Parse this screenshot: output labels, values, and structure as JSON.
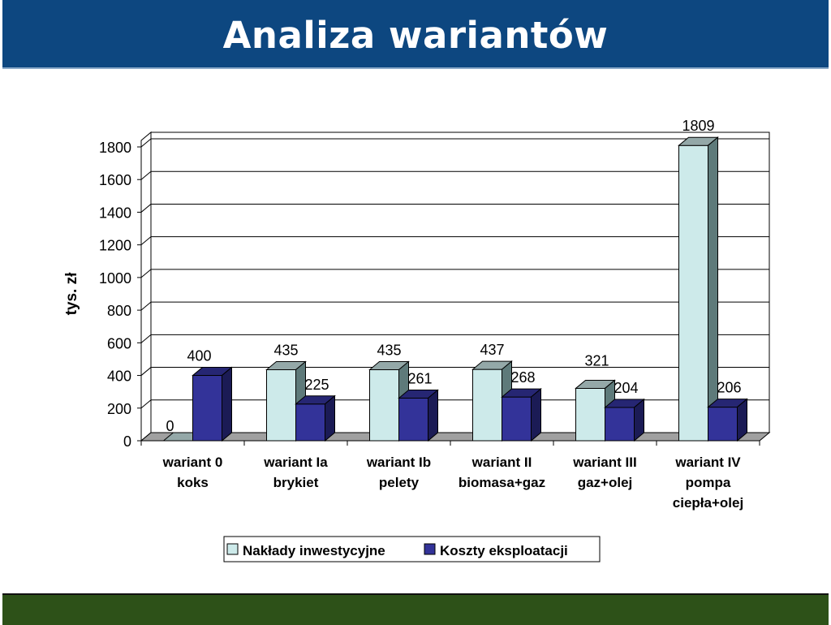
{
  "slide": {
    "title": "Analiza wariantów"
  },
  "chart_data": {
    "type": "bar",
    "title": "",
    "xlabel": "",
    "ylabel": "tys. zł",
    "ylim": [
      0,
      1800
    ],
    "yticks": [
      0,
      200,
      400,
      600,
      800,
      1000,
      1200,
      1400,
      1600,
      1800
    ],
    "grid": true,
    "legend_position": "bottom",
    "categories": [
      [
        "wariant 0",
        "koks"
      ],
      [
        "wariant Ia",
        "brykiet"
      ],
      [
        "wariant Ib",
        "pelety"
      ],
      [
        "wariant II",
        "biomasa+gaz"
      ],
      [
        "wariant III",
        "gaz+olej"
      ],
      [
        "wariant IV",
        "pompa",
        "ciepła+olej"
      ]
    ],
    "series": [
      {
        "name": "Nakłady inwestycyjne",
        "values": [
          0,
          435,
          435,
          437,
          321,
          1809
        ],
        "color": "#cdeaea"
      },
      {
        "name": "Koszty eksploatacji",
        "values": [
          400,
          225,
          261,
          268,
          204,
          206
        ],
        "color": "#333399"
      }
    ]
  }
}
